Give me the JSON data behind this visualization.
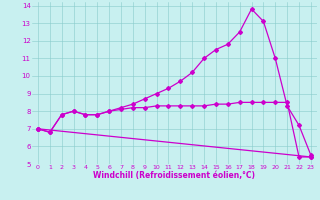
{
  "xlabel": "Windchill (Refroidissement éolien,°C)",
  "bg_color": "#c8f0f0",
  "line_color": "#cc00cc",
  "xlim": [
    -0.5,
    23.5
  ],
  "ylim": [
    5,
    14.2
  ],
  "xticks": [
    0,
    1,
    2,
    3,
    4,
    5,
    6,
    7,
    8,
    9,
    10,
    11,
    12,
    13,
    14,
    15,
    16,
    17,
    18,
    19,
    20,
    21,
    22,
    23
  ],
  "yticks": [
    5,
    6,
    7,
    8,
    9,
    10,
    11,
    12,
    13,
    14
  ],
  "series1_x": [
    0,
    1,
    2,
    3,
    4,
    5,
    6,
    7,
    8,
    9,
    10,
    11,
    12,
    13,
    14,
    15,
    16,
    17,
    18,
    19,
    20,
    21,
    22,
    23
  ],
  "series1_y": [
    7.0,
    6.8,
    7.8,
    8.0,
    7.8,
    7.8,
    8.0,
    8.2,
    8.4,
    8.7,
    9.0,
    9.3,
    9.7,
    10.2,
    11.0,
    11.5,
    11.8,
    12.5,
    13.8,
    13.1,
    11.0,
    8.3,
    7.2,
    5.5
  ],
  "series2_x": [
    0,
    1,
    2,
    3,
    4,
    5,
    6,
    7,
    8,
    9,
    10,
    11,
    12,
    13,
    14,
    15,
    16,
    17,
    18,
    19,
    20,
    21,
    22,
    23
  ],
  "series2_y": [
    7.0,
    6.8,
    7.8,
    8.0,
    7.8,
    7.8,
    8.0,
    8.1,
    8.2,
    8.2,
    8.3,
    8.3,
    8.3,
    8.3,
    8.3,
    8.4,
    8.4,
    8.5,
    8.5,
    8.5,
    8.5,
    8.5,
    5.4,
    5.4
  ],
  "series3_x": [
    0,
    23
  ],
  "series3_y": [
    7.0,
    5.4
  ]
}
